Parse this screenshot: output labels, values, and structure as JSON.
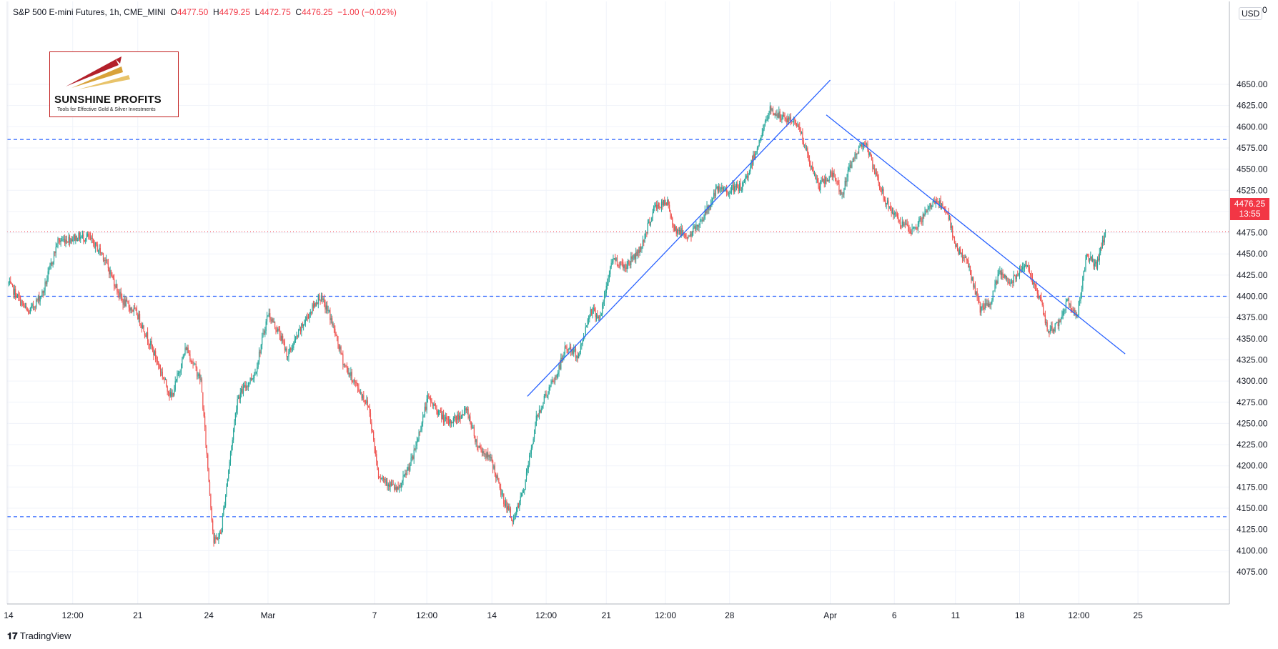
{
  "header": {
    "symbol": "S&P 500 E-mini Futures, 1h, CME_MINI",
    "o_label": "O",
    "o_value": "4477.50",
    "h_label": "H",
    "h_value": "4479.25",
    "l_label": "L",
    "l_value": "4472.75",
    "c_label": "C",
    "c_value": "4476.25",
    "change": "−1.00 (−0.02%)"
  },
  "logo": {
    "name": "SUNSHINE PROFITS",
    "tagline": "Tools for Effective Gold & Silver Investments"
  },
  "currency": "USD",
  "top_right_char": "0",
  "last_price": {
    "price": "4476.25",
    "countdown": "13:55"
  },
  "footer": {
    "brand": "TradingView"
  },
  "colors": {
    "up": "#26a69a",
    "down": "#ef5350",
    "trendline": "#2962ff",
    "level": "#2962ff",
    "price_line": "#f23645",
    "grid": "#f0f3fa"
  },
  "chart_data": {
    "type": "candlestick",
    "title": "S&P 500 E-mini Futures, 1h, CME_MINI",
    "y_ticks": [
      4075,
      4100,
      4125,
      4150,
      4175,
      4200,
      4225,
      4250,
      4275,
      4300,
      4325,
      4350,
      4375,
      4400,
      4425,
      4450,
      4475,
      4500,
      4525,
      4550,
      4575,
      4600,
      4625,
      4650
    ],
    "y_tick_labels": [
      "4075.00",
      "4100.00",
      "4125.00",
      "4150.00",
      "4175.00",
      "4200.00",
      "4225.00",
      "4250.00",
      "4275.00",
      "4300.00",
      "4325.00",
      "4350.00",
      "4375.00",
      "4400.00",
      "4425.00",
      "4450.00",
      "4475.00",
      "4500.00",
      "4525.00",
      "4550.00",
      "4575.00",
      "4600.00",
      "4625.00",
      "4650.00"
    ],
    "ylim": [
      4062,
      4684
    ],
    "x_tick_labels": [
      "14",
      "12:00",
      "21",
      "24",
      "Mar",
      "7",
      "12:00",
      "14",
      "12:00",
      "21",
      "12:00",
      "28",
      "Apr",
      "6",
      "11",
      "18",
      "12:00",
      "25"
    ],
    "x_tick_index": [
      0,
      65,
      131,
      203,
      263,
      371,
      424,
      490,
      545,
      606,
      666,
      731,
      833,
      898,
      960,
      1025,
      1085,
      1145
    ],
    "n_bars": 1128,
    "anchors": [
      [
        0,
        4415
      ],
      [
        20,
        4380
      ],
      [
        35,
        4405
      ],
      [
        50,
        4465
      ],
      [
        70,
        4470
      ],
      [
        80,
        4470
      ],
      [
        95,
        4450
      ],
      [
        115,
        4395
      ],
      [
        130,
        4380
      ],
      [
        145,
        4340
      ],
      [
        165,
        4280
      ],
      [
        180,
        4340
      ],
      [
        195,
        4300
      ],
      [
        208,
        4110
      ],
      [
        215,
        4120
      ],
      [
        232,
        4280
      ],
      [
        250,
        4310
      ],
      [
        263,
        4380
      ],
      [
        275,
        4355
      ],
      [
        283,
        4330
      ],
      [
        300,
        4370
      ],
      [
        315,
        4400
      ],
      [
        325,
        4380
      ],
      [
        340,
        4320
      ],
      [
        355,
        4290
      ],
      [
        365,
        4270
      ],
      [
        375,
        4190
      ],
      [
        385,
        4180
      ],
      [
        395,
        4170
      ],
      [
        410,
        4210
      ],
      [
        425,
        4280
      ],
      [
        445,
        4250
      ],
      [
        465,
        4265
      ],
      [
        475,
        4225
      ],
      [
        490,
        4205
      ],
      [
        500,
        4165
      ],
      [
        512,
        4135
      ],
      [
        523,
        4175
      ],
      [
        535,
        4255
      ],
      [
        543,
        4280
      ],
      [
        555,
        4305
      ],
      [
        565,
        4340
      ],
      [
        578,
        4330
      ],
      [
        590,
        4385
      ],
      [
        600,
        4375
      ],
      [
        612,
        4445
      ],
      [
        625,
        4435
      ],
      [
        640,
        4455
      ],
      [
        655,
        4505
      ],
      [
        668,
        4510
      ],
      [
        675,
        4480
      ],
      [
        690,
        4470
      ],
      [
        705,
        4495
      ],
      [
        718,
        4525
      ],
      [
        730,
        4525
      ],
      [
        745,
        4530
      ],
      [
        760,
        4580
      ],
      [
        772,
        4620
      ],
      [
        785,
        4610
      ],
      [
        800,
        4605
      ],
      [
        814,
        4550
      ],
      [
        822,
        4530
      ],
      [
        835,
        4545
      ],
      [
        845,
        4520
      ],
      [
        855,
        4560
      ],
      [
        868,
        4585
      ],
      [
        878,
        4545
      ],
      [
        890,
        4510
      ],
      [
        902,
        4490
      ],
      [
        915,
        4475
      ],
      [
        925,
        4490
      ],
      [
        940,
        4515
      ],
      [
        952,
        4495
      ],
      [
        962,
        4455
      ],
      [
        972,
        4440
      ],
      [
        985,
        4385
      ],
      [
        995,
        4390
      ],
      [
        1005,
        4430
      ],
      [
        1015,
        4415
      ],
      [
        1030,
        4440
      ],
      [
        1045,
        4400
      ],
      [
        1053,
        4360
      ],
      [
        1063,
        4365
      ],
      [
        1073,
        4395
      ],
      [
        1083,
        4375
      ],
      [
        1093,
        4450
      ],
      [
        1103,
        4435
      ],
      [
        1112,
        4476
      ]
    ],
    "horizontal_levels": [
      4585,
      4400,
      4140
    ],
    "trendlines": [
      {
        "from": [
          526,
          4282
        ],
        "to": [
          833,
          4655
        ]
      },
      {
        "from": [
          829,
          4614
        ],
        "to": [
          1132,
          4332
        ]
      }
    ],
    "last_price": 4476.25
  }
}
